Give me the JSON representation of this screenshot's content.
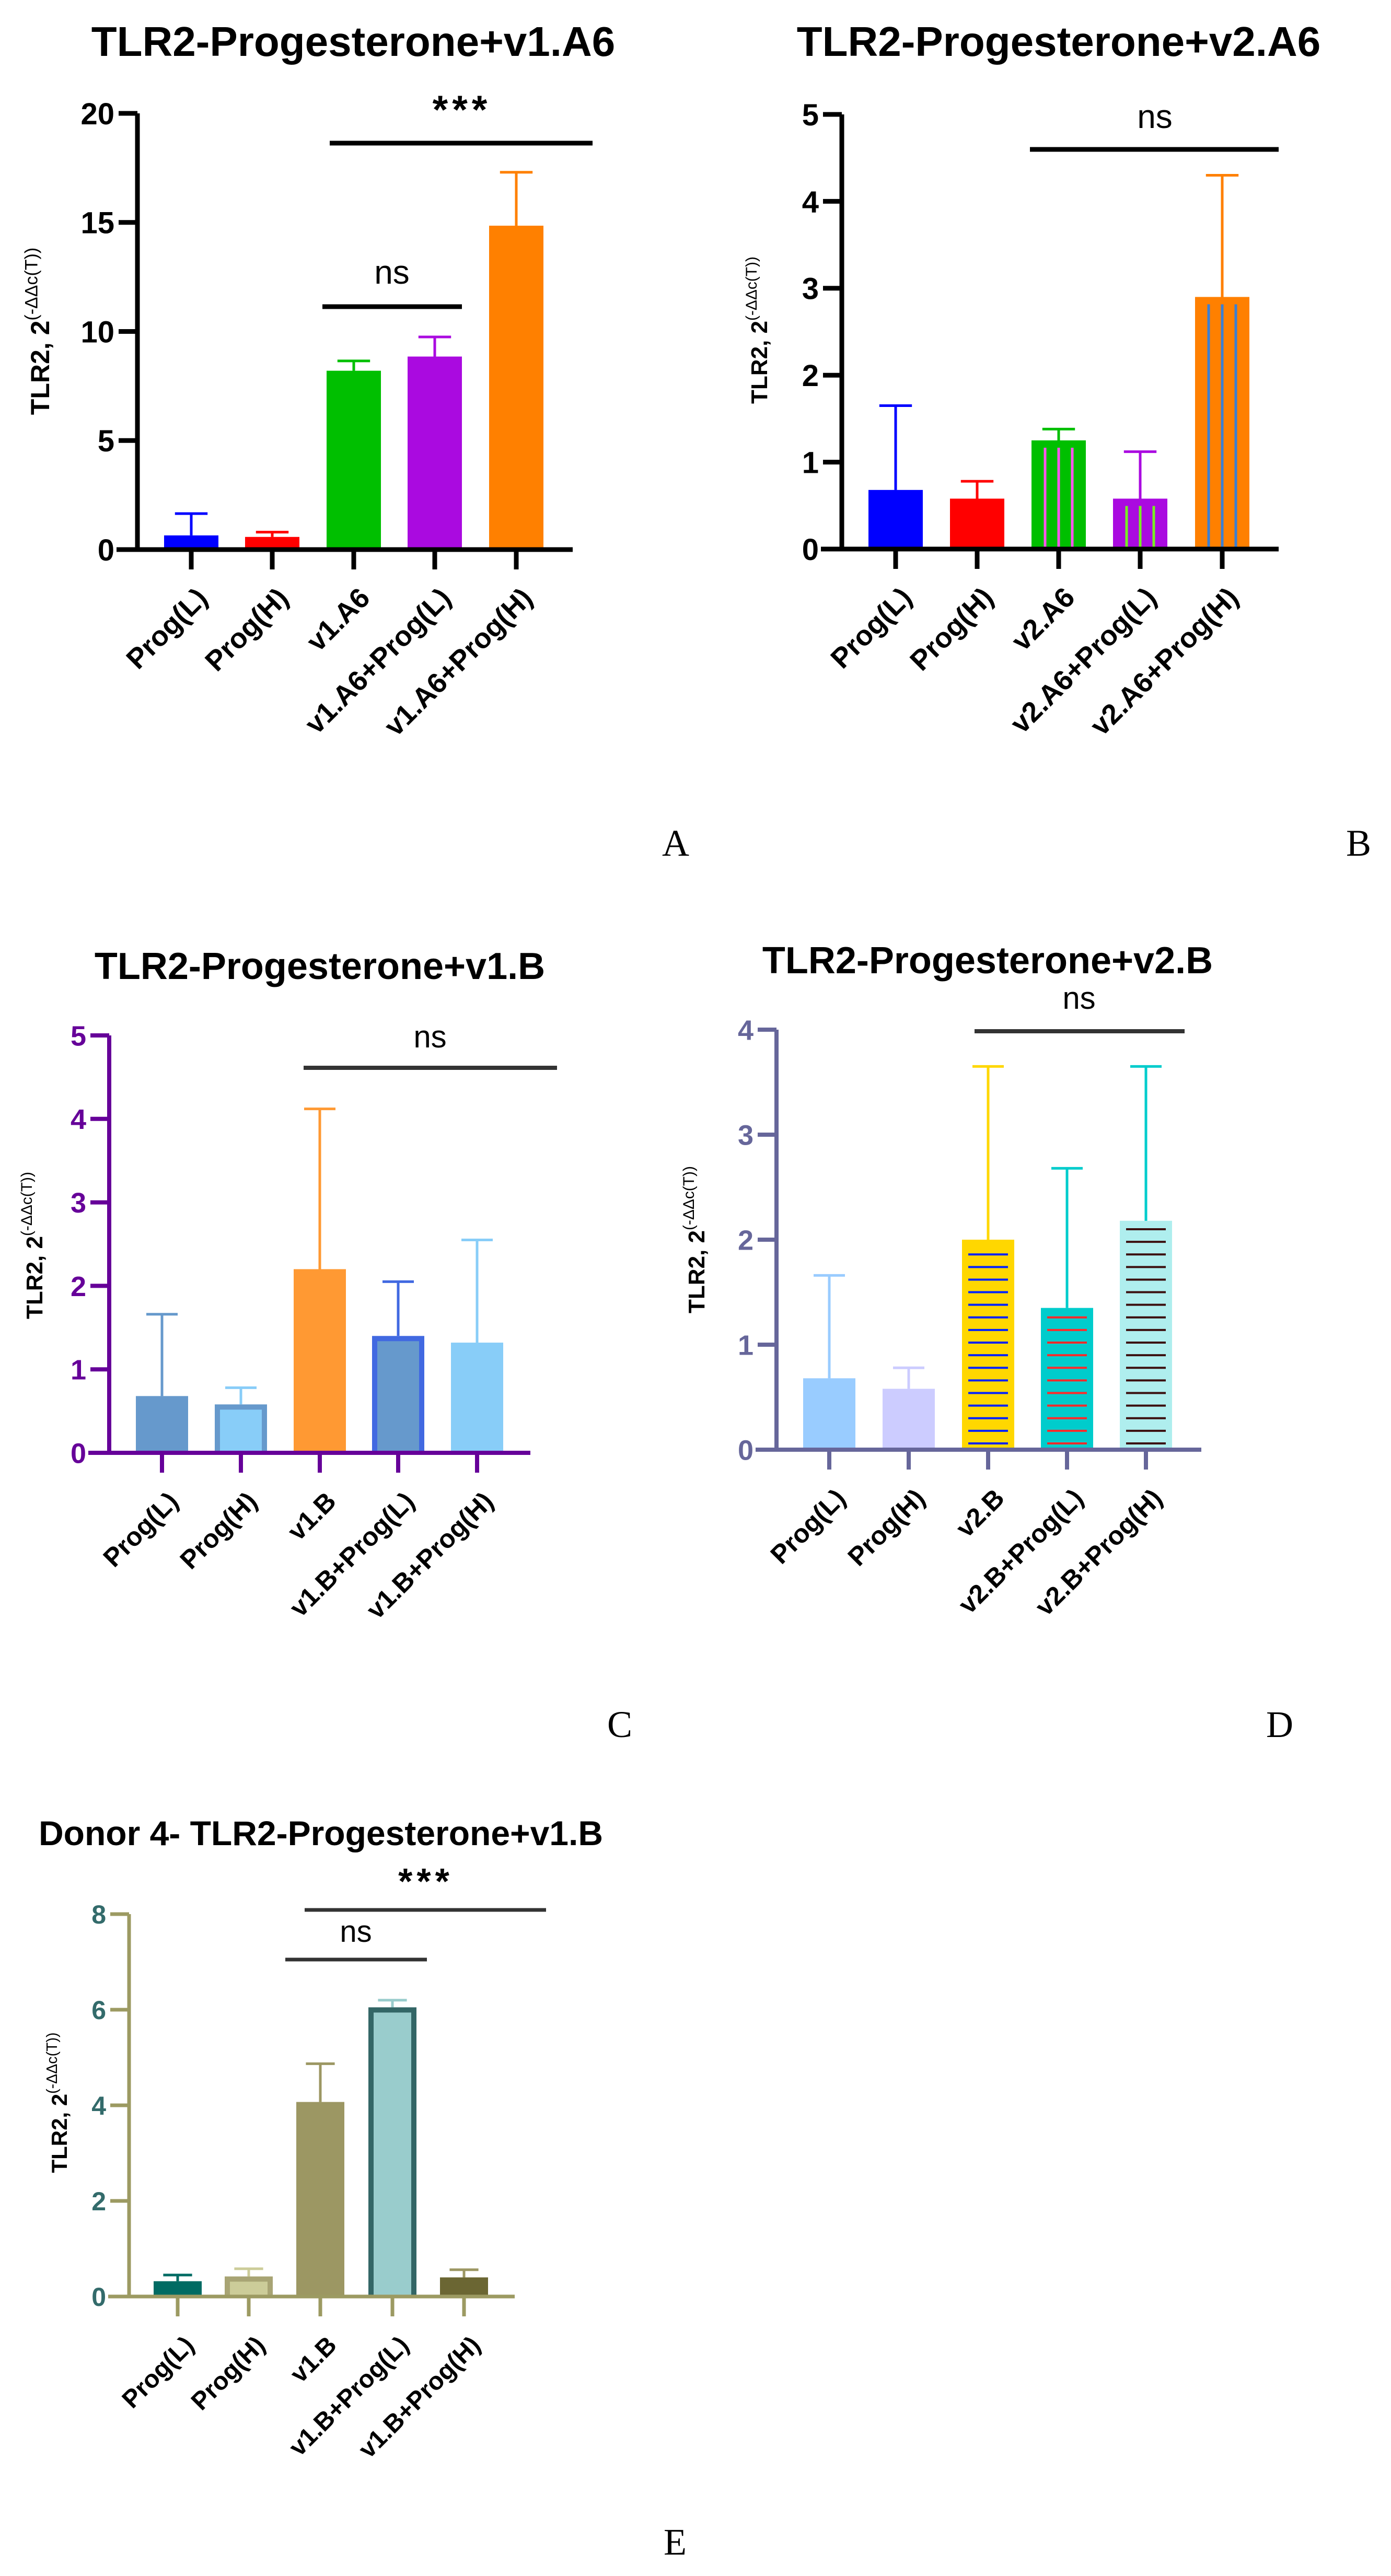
{
  "chart_data": [
    {
      "type": "bar",
      "panel_label": "A",
      "title": "TLR2-Progesterone+v1.A6",
      "ylabel": "TLR2, 2",
      "ylabel_sup": "(-ΔΔc(T))",
      "ylim": [
        0,
        20
      ],
      "yticks": [
        "0",
        "5",
        "10",
        "15",
        "20"
      ],
      "ytick_values": [
        0,
        5,
        10,
        15,
        20
      ],
      "categories": [
        "Prog(L)",
        "Prog(H)",
        "v1.A6",
        "v1.A6+Prog(L)",
        "v1.A6+Prog(H)"
      ],
      "values": [
        0.65,
        0.58,
        8.2,
        8.85,
        14.85
      ],
      "error_upper": [
        1.65,
        0.8,
        8.65,
        9.75,
        17.3
      ],
      "colors": {
        "axis": "#000000",
        "tick_labels": "#000000",
        "bars": [
          "#0000ff",
          "#ff0000",
          "#00bf00",
          "#aa0ae0",
          "#ff8000"
        ],
        "errors": [
          "#0000ff",
          "#ff0000",
          "#00bf00",
          "#aa0ae0",
          "#ff8000"
        ]
      },
      "significance": [
        {
          "label": "***",
          "from": "v1.A6",
          "to": "v1.A6+Prog(H)"
        },
        {
          "label": "ns",
          "from": "v1.A6",
          "to": "v1.A6+Prog(L)"
        }
      ]
    },
    {
      "type": "bar",
      "panel_label": "B",
      "title": "TLR2-Progesterone+v2.A6",
      "ylabel": "TLR2, 2",
      "ylabel_sup": "(-ΔΔc(T))",
      "ylim": [
        0,
        5
      ],
      "yticks": [
        "0",
        "1",
        "2",
        "3",
        "4",
        "5"
      ],
      "ytick_values": [
        0,
        1,
        2,
        3,
        4,
        5
      ],
      "categories": [
        "Prog(L)",
        "Prog(H)",
        "v2.A6",
        "v2.A6+Prog(L)",
        "v2.A6+Prog(H)"
      ],
      "values": [
        0.68,
        0.58,
        1.25,
        0.58,
        2.9
      ],
      "error_upper": [
        1.65,
        0.78,
        1.38,
        1.12,
        4.3
      ],
      "colors": {
        "axis": "#000000",
        "tick_labels": "#000000",
        "bars": [
          "#0000ff",
          "#ff0000",
          "#00bf00",
          "#aa0ae0",
          "#ff8000"
        ],
        "errors": [
          "#0000ff",
          "#ff0000",
          "#00bf00",
          "#aa0ae0",
          "#ff8000"
        ],
        "patterns": [
          null,
          null,
          {
            "type": "vlines",
            "color": "#ff55ee"
          },
          {
            "type": "vlines",
            "color": "#77ee22"
          },
          {
            "type": "vlines",
            "color": "#3a7fd5"
          }
        ]
      },
      "significance": [
        {
          "label": "ns",
          "from": "v2.A6",
          "to": "v2.A6+Prog(H)"
        }
      ]
    },
    {
      "type": "bar",
      "panel_label": "C",
      "title": "TLR2-Progesterone+v1.B",
      "ylabel": "TLR2, 2",
      "ylabel_sup": "(-ΔΔc(T))",
      "ylim": [
        0,
        5
      ],
      "yticks": [
        "0",
        "1",
        "2",
        "3",
        "4",
        "5"
      ],
      "ytick_values": [
        0,
        1,
        2,
        3,
        4,
        5
      ],
      "categories": [
        "Prog(L)",
        "Prog(H)",
        "v1.B",
        "v1.B+Prog(L)",
        "v1.B+Prog(H)"
      ],
      "values": [
        0.68,
        0.58,
        2.2,
        1.4,
        1.32
      ],
      "error_upper": [
        1.66,
        0.78,
        4.12,
        2.05,
        2.55
      ],
      "colors": {
        "axis": "#660099",
        "tick_labels": "#660099",
        "bars": [
          "#6699cc",
          "#88cdf8",
          "#ff9933",
          "#6699cc",
          "#88cdf8"
        ],
        "borders": [
          null,
          "#6699cc",
          null,
          "#4169e1",
          null
        ],
        "errors": [
          "#6699cc",
          "#88cdf8",
          "#ff9933",
          "#4169e1",
          "#88cdf8"
        ]
      },
      "significance": [
        {
          "label": "ns",
          "from": "v1.B",
          "to": "v1.B+Prog(H)"
        }
      ]
    },
    {
      "type": "bar",
      "panel_label": "D",
      "title": "TLR2-Progesterone+v2.B",
      "ylabel": "TLR2, 2",
      "ylabel_sup": "(-ΔΔc(T))",
      "ylim": [
        0,
        4
      ],
      "yticks": [
        "0",
        "1",
        "2",
        "3",
        "4"
      ],
      "ytick_values": [
        0,
        1,
        2,
        3,
        4
      ],
      "categories": [
        "Prog(L)",
        "Prog(H)",
        "v2.B",
        "v2.B+Prog(L)",
        "v2.B+Prog(H)"
      ],
      "values": [
        0.68,
        0.58,
        2.0,
        1.35,
        2.18
      ],
      "error_upper": [
        1.66,
        0.78,
        3.65,
        2.68,
        3.65
      ],
      "colors": {
        "axis": "#66669a",
        "tick_labels": "#66669a",
        "bars": [
          "#99ccff",
          "#ccccff",
          "#ffd700",
          "#00cccc",
          "#afeeee"
        ],
        "errors": [
          "#99ccff",
          "#ccccff",
          "#ffd700",
          "#00cccc",
          "#00cccc"
        ],
        "patterns": [
          null,
          null,
          {
            "type": "hlines",
            "color": "#0022ff"
          },
          {
            "type": "hlines",
            "color": "#ff2a2a"
          },
          {
            "type": "hlines",
            "color": "#3b0f0f"
          }
        ]
      },
      "significance": [
        {
          "label": "ns",
          "from": "v2.B",
          "to": "v2.B+Prog(H)"
        }
      ]
    },
    {
      "type": "bar",
      "panel_label": "E",
      "title": "Donor 4- TLR2-Progesterone+v1.B",
      "ylabel": "TLR2, 2",
      "ylabel_sup": "(-ΔΔc(T))",
      "ylim": [
        0,
        8
      ],
      "yticks": [
        "0",
        "2",
        "4",
        "6",
        "8"
      ],
      "ytick_values": [
        0,
        2,
        4,
        6,
        8
      ],
      "categories": [
        "Prog(L)",
        "Prog(H)",
        "v1.B",
        "v1.B+Prog(L)",
        "v1.B+Prog(H)"
      ],
      "values": [
        0.32,
        0.42,
        4.07,
        6.05,
        0.4
      ],
      "error_upper": [
        0.45,
        0.58,
        4.87,
        6.2,
        0.56
      ],
      "colors": {
        "axis": "#9c9a62",
        "tick_labels": "#336b6b",
        "bars": [
          "#006b63",
          "#cccc99",
          "#9c9763",
          "#99cccc",
          "#6b6633"
        ],
        "borders": [
          null,
          "#a8a474",
          null,
          "#336666",
          null
        ],
        "errors": [
          "#006b63",
          "#cccc99",
          "#9c9763",
          "#99cccc",
          "#9c9763"
        ]
      },
      "significance": [
        {
          "label": "***",
          "from": "v1.B",
          "to": "v1.B+Prog(H)"
        },
        {
          "label": "ns",
          "from": "Prog(H)",
          "to": "v1.B+Prog(L)"
        }
      ]
    }
  ]
}
